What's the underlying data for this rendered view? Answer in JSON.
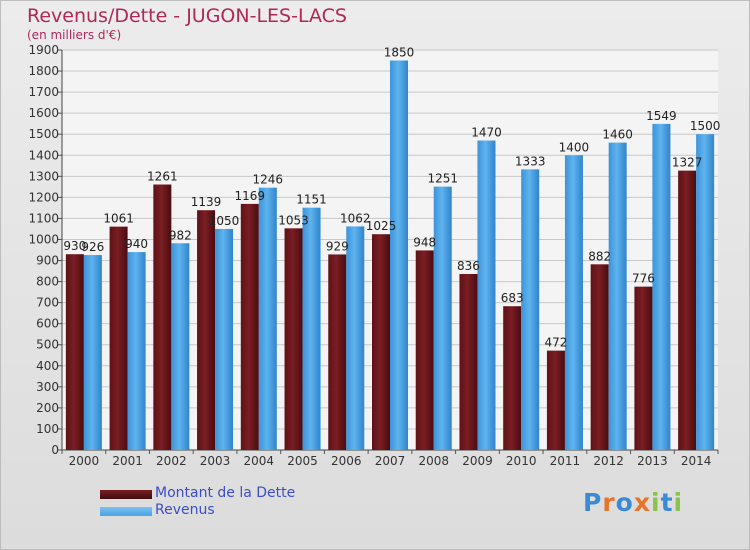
{
  "header": {
    "title": "Revenus/Dette - JUGON-LES-LACS",
    "subtitle": "(en milliers d'€)"
  },
  "legend": {
    "dette_label": "Montant de la Dette",
    "revenus_label": "Revenus"
  },
  "logo": {
    "text": "Proxiti",
    "letter_colors": [
      "#3a8ad6",
      "#e8742a",
      "#3a8ad6",
      "#e8742a",
      "#8bc34a",
      "#3a8ad6",
      "#8bc34a"
    ]
  },
  "colors": {
    "dette": "#7a1e23",
    "revenus": "#4aa3e6",
    "title": "#b0285a"
  },
  "chart_data": {
    "type": "bar",
    "categories": [
      "2000",
      "2001",
      "2002",
      "2003",
      "2004",
      "2005",
      "2006",
      "2007",
      "2008",
      "2009",
      "2010",
      "2011",
      "2012",
      "2013",
      "2014"
    ],
    "series": [
      {
        "name": "Montant de la Dette",
        "values": [
          930,
          1061,
          1261,
          1139,
          1169,
          1053,
          929,
          1025,
          948,
          836,
          683,
          472,
          882,
          776,
          1327
        ]
      },
      {
        "name": "Revenus",
        "values": [
          926,
          940,
          982,
          1050,
          1246,
          1151,
          1062,
          1850,
          1251,
          1470,
          1333,
          1400,
          1460,
          1549,
          1500
        ]
      }
    ],
    "title": "Revenus/Dette - JUGON-LES-LACS",
    "subtitle": "(en milliers d'€)",
    "xlabel": "",
    "ylabel": "",
    "ylim": [
      0,
      1900
    ],
    "ytick_step": 100,
    "grid": true,
    "legend_position": "bottom-left"
  }
}
